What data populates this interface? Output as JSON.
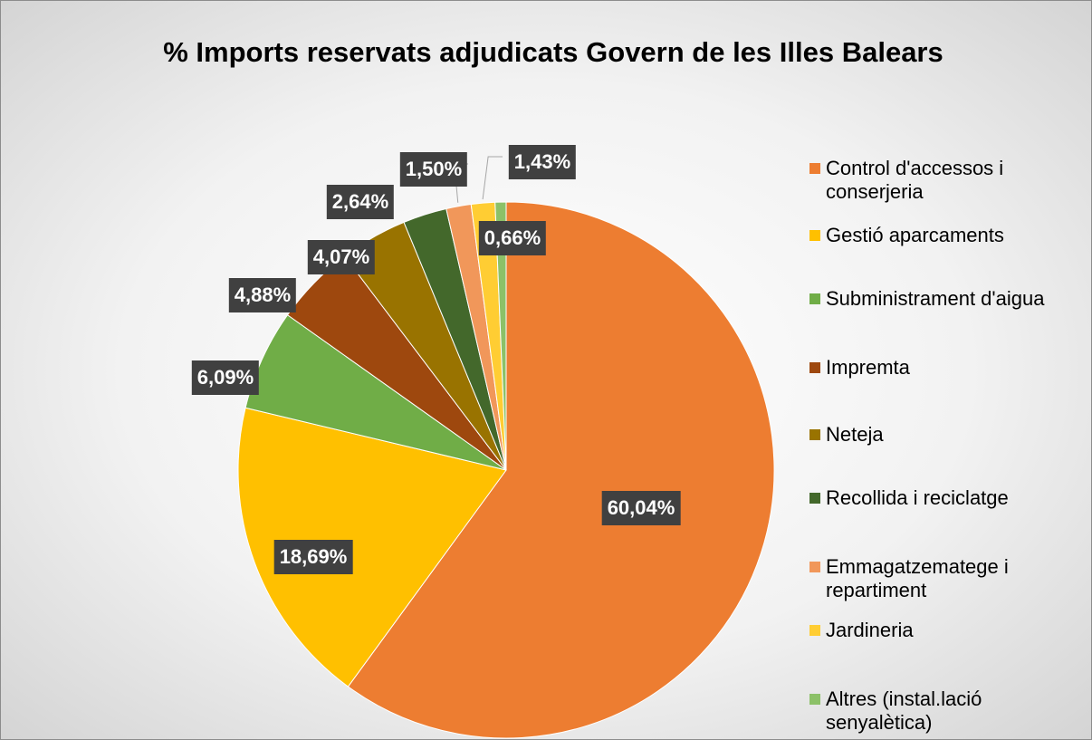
{
  "chart_data": {
    "type": "pie",
    "title": "% Imports reservats adjudicats Govern de les Illes Balears",
    "categories": [
      "Control d'accessos i conserjeria",
      "Gestió aparcaments",
      "Subministrament d'aigua",
      "Impremta",
      "Neteja",
      "Recollida i reciclatge",
      "Emmagatzematege i repartiment",
      "Jardineria",
      "Altres (instal.lació senyalètica)"
    ],
    "values": [
      60.04,
      18.69,
      6.09,
      4.88,
      4.07,
      2.64,
      1.5,
      1.43,
      0.66
    ],
    "value_labels": [
      "60,04%",
      "18,69%",
      "6,09%",
      "4,88%",
      "4,07%",
      "2,64%",
      "1,50%",
      "1,43%",
      "0,66%"
    ],
    "colors": [
      "#ed7d31",
      "#ffc000",
      "#70ad47",
      "#9e480e",
      "#997300",
      "#43682b",
      "#f1975a",
      "#ffcd33",
      "#8cc168"
    ],
    "legend": "right"
  }
}
